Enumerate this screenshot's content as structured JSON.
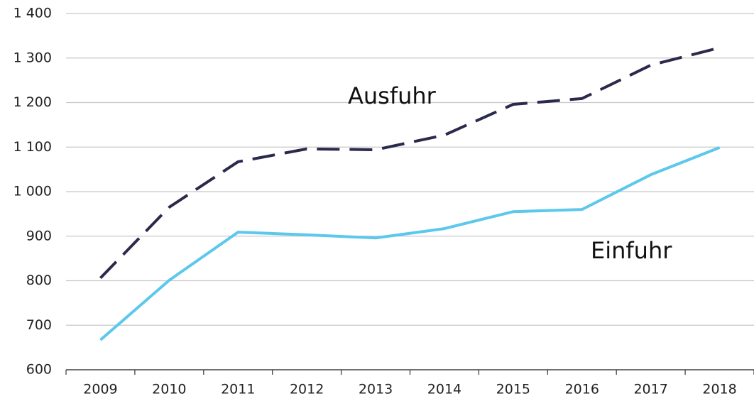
{
  "chart_data": {
    "type": "line",
    "categories": [
      "2009",
      "2010",
      "2011",
      "2012",
      "2013",
      "2014",
      "2015",
      "2016",
      "2017",
      "2018"
    ],
    "series": [
      {
        "name": "Ausfuhr",
        "color": "#2b2a4c",
        "dashed": true,
        "values": [
          806,
          965,
          1067,
          1096,
          1094,
          1127,
          1196,
          1209,
          1284,
          1323
        ]
      },
      {
        "name": "Einfuhr",
        "color": "#5bc8ec",
        "dashed": false,
        "values": [
          667,
          801,
          909,
          903,
          896,
          917,
          955,
          960,
          1038,
          1099
        ]
      }
    ],
    "ylim": [
      600,
      1400
    ],
    "yticks": [
      600,
      700,
      800,
      900,
      {
        "value": 1000,
        "label": "1 000"
      },
      {
        "value": 1100,
        "label": "1 100"
      },
      {
        "value": 1200,
        "label": "1 200"
      },
      {
        "value": 1300,
        "label": "1 300"
      },
      {
        "value": 1400,
        "label": "1 400"
      }
    ],
    "grid": true
  }
}
